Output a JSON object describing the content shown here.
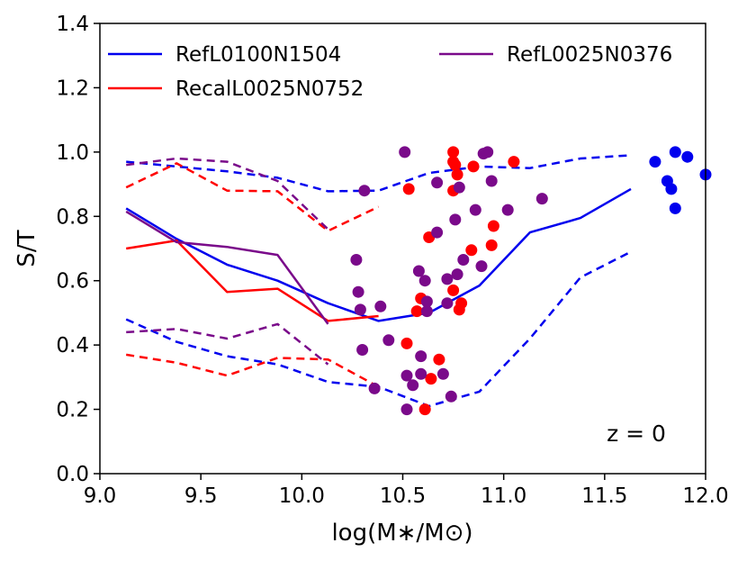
{
  "chart_data": {
    "type": "line",
    "title": "",
    "xlabel": "log(M∗/M⊙)",
    "ylabel": "S/T",
    "xlim": [
      9.0,
      12.0
    ],
    "ylim": [
      0.0,
      1.4
    ],
    "xticks": [
      "9.0",
      "9.5",
      "10.0",
      "10.5",
      "11.0",
      "11.5",
      "12.0"
    ],
    "yticks": [
      "0.0",
      "0.2",
      "0.4",
      "0.6",
      "0.8",
      "1.0",
      "1.2",
      "1.4"
    ],
    "annotation": "z = 0",
    "legend_position": "top",
    "colors": {
      "blue": "#0000ee",
      "red": "#ff0000",
      "purple": "#7a0a8a"
    },
    "legend": [
      {
        "label": "RefL0100N1504",
        "color": "#0000ee"
      },
      {
        "label": "RefL0025N0376",
        "color": "#7a0a8a"
      },
      {
        "label": "RecalL0025N0752",
        "color": "#ff0000"
      }
    ],
    "series": [
      {
        "name": "RefL0100N1504",
        "color": "#0000ee",
        "style": "solid",
        "x": [
          9.13,
          9.38,
          9.63,
          9.88,
          10.13,
          10.38,
          10.63,
          10.88,
          11.13,
          11.38,
          11.63
        ],
        "y": [
          0.825,
          0.73,
          0.65,
          0.6,
          0.53,
          0.475,
          0.5,
          0.585,
          0.75,
          0.795,
          0.885
        ]
      },
      {
        "name": "RefL0100N1504 upper",
        "color": "#0000ee",
        "style": "dashed",
        "x": [
          9.13,
          9.38,
          9.63,
          9.88,
          10.13,
          10.38,
          10.63,
          10.88,
          11.13,
          11.38,
          11.63
        ],
        "y": [
          0.97,
          0.955,
          0.94,
          0.92,
          0.878,
          0.88,
          0.935,
          0.955,
          0.95,
          0.98,
          0.99
        ]
      },
      {
        "name": "RefL0100N1504 lower",
        "color": "#0000ee",
        "style": "dashed",
        "x": [
          9.13,
          9.38,
          9.63,
          9.88,
          10.13,
          10.38,
          10.63,
          10.88,
          11.13,
          11.38,
          11.63
        ],
        "y": [
          0.48,
          0.41,
          0.365,
          0.34,
          0.285,
          0.27,
          0.21,
          0.255,
          0.42,
          0.61,
          0.69
        ]
      },
      {
        "name": "RecalL0025N0752",
        "color": "#ff0000",
        "style": "solid",
        "x": [
          9.13,
          9.38,
          9.63,
          9.88,
          10.13,
          10.38
        ],
        "y": [
          0.7,
          0.725,
          0.565,
          0.575,
          0.475,
          0.49
        ]
      },
      {
        "name": "RecalL0025N0752 upper",
        "color": "#ff0000",
        "style": "dashed",
        "x": [
          9.13,
          9.38,
          9.63,
          9.88,
          10.13,
          10.38
        ],
        "y": [
          0.89,
          0.965,
          0.88,
          0.878,
          0.755,
          0.83
        ]
      },
      {
        "name": "RecalL0025N0752 lower",
        "color": "#ff0000",
        "style": "dashed",
        "x": [
          9.13,
          9.38,
          9.63,
          9.88,
          10.13,
          10.38
        ],
        "y": [
          0.37,
          0.345,
          0.305,
          0.36,
          0.355,
          0.27
        ]
      },
      {
        "name": "RefL0025N0376",
        "color": "#7a0a8a",
        "style": "solid",
        "x": [
          9.13,
          9.38,
          9.63,
          9.88,
          10.13
        ],
        "y": [
          0.815,
          0.72,
          0.705,
          0.68,
          0.465
        ]
      },
      {
        "name": "RefL0025N0376 upper",
        "color": "#7a0a8a",
        "style": "dashed",
        "x": [
          9.13,
          9.38,
          9.63,
          9.88,
          10.13
        ],
        "y": [
          0.96,
          0.98,
          0.97,
          0.91,
          0.76
        ]
      },
      {
        "name": "RefL0025N0376 lower",
        "color": "#7a0a8a",
        "style": "dashed",
        "x": [
          9.13,
          9.38,
          9.63,
          9.88,
          10.13
        ],
        "y": [
          0.44,
          0.45,
          0.42,
          0.465,
          0.34
        ]
      }
    ],
    "scatter": [
      {
        "name": "RefL0100N1504 points",
        "color": "#0000ee",
        "points": [
          [
            11.75,
            0.97
          ],
          [
            11.81,
            0.91
          ],
          [
            11.83,
            0.885
          ],
          [
            11.85,
            1.0
          ],
          [
            11.85,
            0.825
          ],
          [
            11.91,
            0.985
          ],
          [
            12.0,
            0.93
          ]
        ]
      },
      {
        "name": "RecalL0025N0752 points",
        "color": "#ff0000",
        "points": [
          [
            10.53,
            0.885
          ],
          [
            10.52,
            0.405
          ],
          [
            10.57,
            0.505
          ],
          [
            10.59,
            0.545
          ],
          [
            10.61,
            0.2
          ],
          [
            10.63,
            0.735
          ],
          [
            10.64,
            0.295
          ],
          [
            10.68,
            0.355
          ],
          [
            10.75,
            1.0
          ],
          [
            10.75,
            0.97
          ],
          [
            10.76,
            0.96
          ],
          [
            10.75,
            0.88
          ],
          [
            10.75,
            0.57
          ],
          [
            10.77,
            0.93
          ],
          [
            10.78,
            0.51
          ],
          [
            10.79,
            0.53
          ],
          [
            10.85,
            0.955
          ],
          [
            10.84,
            0.695
          ],
          [
            10.95,
            0.77
          ],
          [
            10.94,
            0.71
          ],
          [
            11.05,
            0.97
          ]
        ]
      },
      {
        "name": "RefL0025N0376 points",
        "color": "#7a0a8a",
        "points": [
          [
            10.27,
            0.665
          ],
          [
            10.28,
            0.565
          ],
          [
            10.29,
            0.51
          ],
          [
            10.3,
            0.385
          ],
          [
            10.31,
            0.88
          ],
          [
            10.36,
            0.265
          ],
          [
            10.39,
            0.52
          ],
          [
            10.43,
            0.415
          ],
          [
            10.51,
            1.0
          ],
          [
            10.52,
            0.305
          ],
          [
            10.52,
            0.2
          ],
          [
            10.55,
            0.275
          ],
          [
            10.58,
            0.63
          ],
          [
            10.59,
            0.31
          ],
          [
            10.59,
            0.365
          ],
          [
            10.61,
            0.6
          ],
          [
            10.62,
            0.535
          ],
          [
            10.62,
            0.505
          ],
          [
            10.67,
            0.905
          ],
          [
            10.67,
            0.75
          ],
          [
            10.7,
            0.31
          ],
          [
            10.72,
            0.605
          ],
          [
            10.72,
            0.53
          ],
          [
            10.74,
            0.24
          ],
          [
            10.76,
            0.79
          ],
          [
            10.77,
            0.62
          ],
          [
            10.78,
            0.89
          ],
          [
            10.8,
            0.665
          ],
          [
            10.86,
            0.82
          ],
          [
            10.89,
            0.645
          ],
          [
            10.9,
            0.995
          ],
          [
            10.92,
            1.0
          ],
          [
            10.94,
            0.91
          ],
          [
            11.02,
            0.82
          ],
          [
            11.19,
            0.855
          ]
        ]
      }
    ]
  }
}
